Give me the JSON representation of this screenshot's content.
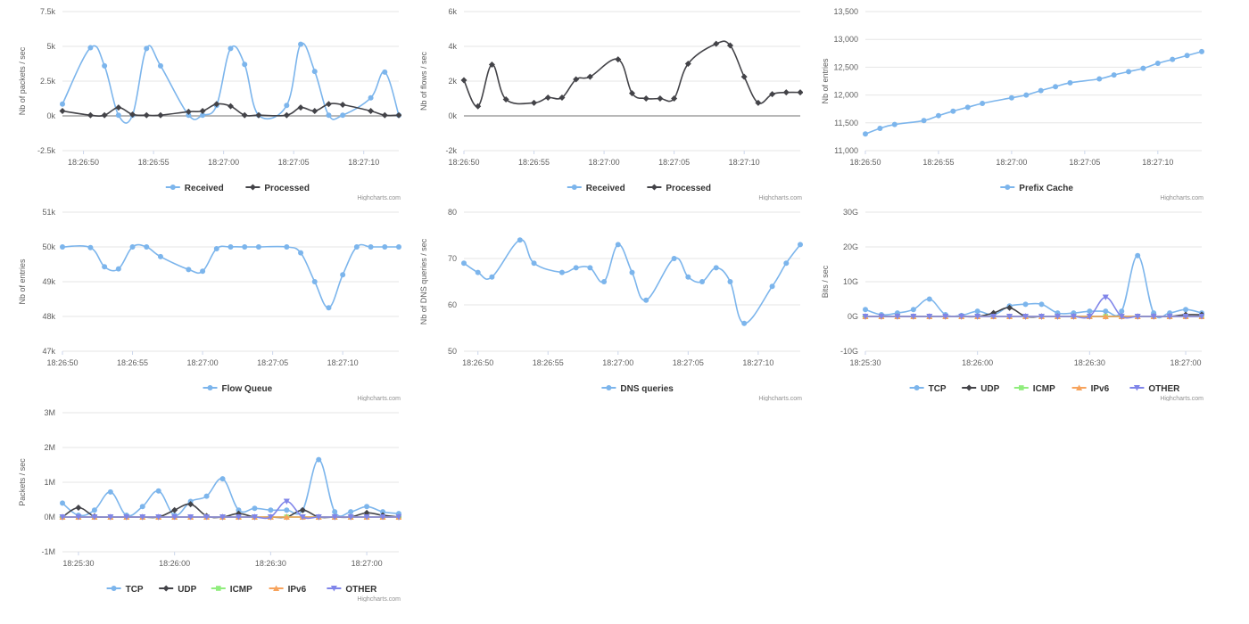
{
  "credits": "Highcharts.com",
  "colors": {
    "series_blue": "#7cb5ec",
    "series_dark": "#434348",
    "series_green": "#90ed7d",
    "series_orange": "#f7a35c",
    "series_purple": "#8085e9",
    "grid": "#e6e6e6",
    "zero_line": "#a0a0a0",
    "axis_text": "#606060"
  },
  "chart_data": [
    {
      "id": "packets",
      "type": "line",
      "title": "",
      "ylabel": "Nb of packets / sec",
      "ylim": [
        -2500,
        7500
      ],
      "yticks": [
        -2500,
        0,
        2500,
        5000,
        7500
      ],
      "ytick_labels": [
        "-2.5k",
        "0k",
        "2.5k",
        "5k",
        "7.5k"
      ],
      "xlim": [
        0,
        24
      ],
      "xticks": [
        1.5,
        6.5,
        11.5,
        16.5,
        21.5
      ],
      "xtick_labels": [
        "18:26:50",
        "18:26:55",
        "18:27:00",
        "18:27:05",
        "18:27:10"
      ],
      "series": [
        {
          "name": "Received",
          "color": "#7cb5ec",
          "marker": "circle",
          "x": [
            0,
            2,
            3,
            4,
            5,
            6,
            7,
            9,
            10,
            11,
            12,
            13,
            14,
            16,
            17,
            18,
            19,
            20,
            22,
            23,
            24
          ],
          "values": [
            850,
            4900,
            3600,
            50,
            50,
            4850,
            3600,
            50,
            50,
            750,
            4850,
            3700,
            50,
            750,
            5150,
            3200,
            50,
            50,
            1300,
            3150,
            50
          ]
        },
        {
          "name": "Processed",
          "color": "#434348",
          "marker": "diamond",
          "x": [
            0,
            2,
            3,
            4,
            5,
            6,
            7,
            9,
            10,
            11,
            12,
            13,
            14,
            16,
            17,
            18,
            19,
            20,
            22,
            23,
            24
          ],
          "values": [
            350,
            50,
            50,
            600,
            100,
            50,
            50,
            300,
            350,
            850,
            700,
            50,
            50,
            50,
            600,
            350,
            850,
            800,
            350,
            50,
            50
          ]
        }
      ]
    },
    {
      "id": "flows",
      "type": "line",
      "title": "",
      "ylabel": "Nb of flows / sec",
      "ylim": [
        -2000,
        6000
      ],
      "yticks": [
        -2000,
        0,
        2000,
        4000,
        6000
      ],
      "ytick_labels": [
        "-2k",
        "0k",
        "2k",
        "4k",
        "6k"
      ],
      "xlim": [
        0,
        24
      ],
      "xticks": [
        0,
        5,
        10,
        15,
        20
      ],
      "xtick_labels": [
        "18:26:50",
        "18:26:55",
        "18:27:00",
        "18:27:05",
        "18:27:10"
      ],
      "series": [
        {
          "name": "Received",
          "color": "#7cb5ec",
          "marker": "circle",
          "x": [],
          "values": []
        },
        {
          "name": "Processed",
          "color": "#434348",
          "marker": "diamond",
          "x": [
            0,
            1,
            2,
            3,
            5,
            6,
            7,
            8,
            9,
            11,
            12,
            13,
            14,
            15,
            16,
            18,
            19,
            20,
            21,
            22,
            23,
            24
          ],
          "values": [
            2050,
            550,
            2950,
            950,
            750,
            1050,
            1050,
            2100,
            2250,
            3250,
            1300,
            1000,
            1000,
            1000,
            3000,
            4150,
            4050,
            2250,
            750,
            1250,
            1350,
            1350
          ]
        }
      ]
    },
    {
      "id": "prefix",
      "type": "line",
      "title": "",
      "ylabel": "Nb of entries",
      "ylim": [
        11000,
        13500
      ],
      "yticks": [
        11000,
        11500,
        12000,
        12500,
        13000,
        13500
      ],
      "ytick_labels": [
        "11,000",
        "11,500",
        "12,000",
        "12,500",
        "13,000",
        "13,500"
      ],
      "xlim": [
        0,
        23
      ],
      "xticks": [
        0,
        5,
        10,
        15,
        20
      ],
      "xtick_labels": [
        "18:26:50",
        "18:26:55",
        "18:27:00",
        "18:27:05",
        "18:27:10"
      ],
      "series": [
        {
          "name": "Prefix Cache",
          "color": "#7cb5ec",
          "marker": "circle",
          "x": [
            0,
            1,
            2,
            4,
            5,
            6,
            7,
            8,
            10,
            11,
            12,
            13,
            14,
            16,
            17,
            18,
            19,
            20,
            21,
            22,
            23
          ],
          "values": [
            11300,
            11400,
            11470,
            11540,
            11630,
            11710,
            11780,
            11850,
            11950,
            12000,
            12080,
            12150,
            12220,
            12290,
            12360,
            12420,
            12480,
            12570,
            12640,
            12710,
            12780
          ]
        }
      ]
    },
    {
      "id": "flowqueue",
      "type": "line",
      "title": "",
      "ylabel": "Nb of entries",
      "ylim": [
        47000,
        51000
      ],
      "yticks": [
        47000,
        48000,
        49000,
        50000,
        51000
      ],
      "ytick_labels": [
        "47k",
        "48k",
        "49k",
        "50k",
        "51k"
      ],
      "xlim": [
        0,
        24
      ],
      "xticks": [
        0,
        5,
        10,
        15,
        20
      ],
      "xtick_labels": [
        "18:26:50",
        "18:26:55",
        "18:27:00",
        "18:27:05",
        "18:27:10"
      ],
      "series": [
        {
          "name": "Flow Queue",
          "color": "#7cb5ec",
          "marker": "circle",
          "x": [
            0,
            2,
            3,
            4,
            5,
            6,
            7,
            9,
            10,
            11,
            12,
            13,
            14,
            16,
            17,
            18,
            19,
            20,
            21,
            22,
            23,
            24
          ],
          "values": [
            50000,
            49980,
            49430,
            49370,
            50000,
            50000,
            49720,
            49350,
            49300,
            49950,
            50000,
            50000,
            50000,
            50000,
            49830,
            49000,
            48250,
            49200,
            50000,
            50000,
            50000,
            50000
          ]
        }
      ]
    },
    {
      "id": "dns",
      "type": "line",
      "title": "",
      "ylabel": "Nb of DNS queries / sec",
      "ylim": [
        50,
        80
      ],
      "yticks": [
        50,
        60,
        70,
        80
      ],
      "ytick_labels": [
        "50",
        "60",
        "70",
        "80"
      ],
      "xlim": [
        0,
        24
      ],
      "xticks": [
        1,
        6,
        11,
        16,
        21
      ],
      "xtick_labels": [
        "18:26:50",
        "18:26:55",
        "18:27:00",
        "18:27:05",
        "18:27:10"
      ],
      "series": [
        {
          "name": "DNS queries",
          "color": "#7cb5ec",
          "marker": "circle",
          "x": [
            0,
            1,
            2,
            4,
            5,
            7,
            8,
            9,
            10,
            11,
            12,
            13,
            15,
            16,
            17,
            18,
            19,
            20,
            22,
            23,
            24
          ],
          "values": [
            69,
            67,
            66,
            74,
            69,
            67,
            68,
            68,
            65,
            73,
            67,
            61,
            70,
            66,
            65,
            68,
            65,
            56,
            64,
            69,
            73
          ]
        }
      ]
    },
    {
      "id": "bits",
      "type": "line",
      "title": "",
      "ylabel": "Bits / sec",
      "ylim": [
        -10,
        30
      ],
      "yticks": [
        -10,
        0,
        10,
        20,
        30
      ],
      "ytick_labels": [
        "-10G",
        "0G",
        "10G",
        "20G",
        "30G"
      ],
      "xlim": [
        0,
        21
      ],
      "xticks": [
        0,
        7,
        14,
        20
      ],
      "xtick_labels": [
        "18:25:30",
        "18:26:00",
        "18:26:30",
        "18:27:00"
      ],
      "series": [
        {
          "name": "TCP",
          "color": "#7cb5ec",
          "marker": "circle",
          "x": [
            0,
            1,
            2,
            3,
            4,
            5,
            6,
            7,
            8,
            9,
            10,
            11,
            12,
            13,
            14,
            15,
            16,
            17,
            18,
            19,
            20,
            21
          ],
          "values": [
            2,
            0.5,
            1,
            2,
            5,
            0.5,
            0.3,
            1.5,
            0.5,
            3,
            3.5,
            3.5,
            1,
            1,
            1.5,
            1.5,
            1.5,
            17.5,
            1,
            1,
            2,
            1
          ]
        },
        {
          "name": "UDP",
          "color": "#434348",
          "marker": "diamond",
          "x": [
            0,
            1,
            2,
            3,
            4,
            5,
            6,
            7,
            8,
            9,
            10,
            11,
            12,
            13,
            14,
            15,
            16,
            17,
            18,
            19,
            20,
            21
          ],
          "values": [
            0,
            0,
            0,
            0,
            0,
            0,
            0,
            0,
            1,
            2.5,
            0,
            0,
            0,
            0,
            0,
            0,
            0,
            0,
            0,
            0,
            0.5,
            0.5
          ]
        },
        {
          "name": "ICMP",
          "color": "#90ed7d",
          "marker": "square",
          "x": [
            0,
            1,
            2,
            3,
            4,
            5,
            6,
            7,
            8,
            9,
            10,
            11,
            12,
            13,
            14,
            15,
            16,
            17,
            18,
            19,
            20,
            21
          ],
          "values": [
            0,
            0,
            0,
            0,
            0,
            0,
            0,
            0,
            0,
            0,
            0,
            0,
            0,
            0,
            0,
            0,
            0,
            0,
            0,
            0,
            0,
            0
          ]
        },
        {
          "name": "IPv6",
          "color": "#f7a35c",
          "marker": "triangle",
          "x": [
            0,
            1,
            2,
            3,
            4,
            5,
            6,
            7,
            8,
            9,
            10,
            11,
            12,
            13,
            14,
            15,
            16,
            17,
            18,
            19,
            20,
            21
          ],
          "values": [
            0,
            0,
            0,
            0,
            0,
            0,
            0,
            0,
            0,
            0,
            0,
            0,
            0,
            0,
            0,
            0,
            0,
            0,
            0,
            0,
            0,
            0
          ]
        },
        {
          "name": "OTHER",
          "color": "#8085e9",
          "marker": "triangle-down",
          "x": [
            0,
            1,
            2,
            3,
            4,
            5,
            6,
            7,
            8,
            9,
            10,
            11,
            12,
            13,
            14,
            15,
            16,
            17,
            18,
            19,
            20,
            21
          ],
          "values": [
            0,
            0,
            0,
            0,
            0,
            0,
            0,
            0,
            0,
            0,
            0,
            0,
            0,
            0,
            0,
            5.5,
            0,
            0,
            0,
            0,
            0,
            0
          ]
        }
      ]
    },
    {
      "id": "packets_proto",
      "type": "line",
      "title": "",
      "ylabel": "Packets / sec",
      "ylim": [
        -1,
        3
      ],
      "yticks": [
        -1,
        0,
        1,
        2,
        3
      ],
      "ytick_labels": [
        "-1M",
        "0M",
        "1M",
        "2M",
        "3M"
      ],
      "xlim": [
        0,
        21
      ],
      "xticks": [
        1,
        7,
        13,
        19
      ],
      "xtick_labels": [
        "18:25:30",
        "18:26:00",
        "18:26:30",
        "18:27:00"
      ],
      "series": [
        {
          "name": "TCP",
          "color": "#7cb5ec",
          "marker": "circle",
          "x": [
            0,
            1,
            2,
            3,
            4,
            5,
            6,
            7,
            8,
            9,
            10,
            11,
            12,
            13,
            14,
            15,
            16,
            17,
            18,
            19,
            20,
            21
          ],
          "values": [
            0.4,
            0.05,
            0.2,
            0.72,
            0.05,
            0.3,
            0.75,
            0.05,
            0.45,
            0.6,
            1.1,
            0.2,
            0.25,
            0.2,
            0.2,
            0.2,
            1.65,
            0.15,
            0.15,
            0.3,
            0.15,
            0.1
          ]
        },
        {
          "name": "UDP",
          "color": "#434348",
          "marker": "diamond",
          "x": [
            0,
            1,
            2,
            3,
            4,
            5,
            6,
            7,
            8,
            9,
            10,
            11,
            12,
            13,
            14,
            15,
            16,
            17,
            18,
            19,
            20,
            21
          ],
          "values": [
            0,
            0.27,
            0.02,
            0,
            0,
            0,
            0,
            0.2,
            0.37,
            0.03,
            0,
            0.1,
            0,
            0,
            0,
            0.2,
            0,
            0,
            0,
            0.12,
            0.05,
            0
          ]
        },
        {
          "name": "ICMP",
          "color": "#90ed7d",
          "marker": "square",
          "x": [
            0,
            1,
            2,
            3,
            4,
            5,
            6,
            7,
            8,
            9,
            10,
            11,
            12,
            13,
            14,
            15,
            16,
            17,
            18,
            19,
            20,
            21
          ],
          "values": [
            0,
            0,
            0,
            0,
            0,
            0,
            0,
            0,
            0,
            0,
            0,
            0,
            0,
            0,
            0,
            0,
            0,
            0,
            0,
            0,
            0,
            0
          ]
        },
        {
          "name": "IPv6",
          "color": "#f7a35c",
          "marker": "triangle",
          "x": [
            0,
            1,
            2,
            3,
            4,
            5,
            6,
            7,
            8,
            9,
            10,
            11,
            12,
            13,
            14,
            15,
            16,
            17,
            18,
            19,
            20,
            21
          ],
          "values": [
            0,
            0,
            0,
            0,
            0,
            0,
            0,
            0,
            0,
            0,
            0,
            0,
            0,
            0,
            0,
            0,
            0,
            0,
            0,
            0,
            0,
            0
          ]
        },
        {
          "name": "OTHER",
          "color": "#8085e9",
          "marker": "triangle-down",
          "x": [
            0,
            1,
            2,
            3,
            4,
            5,
            6,
            7,
            8,
            9,
            10,
            11,
            12,
            13,
            14,
            15,
            16,
            17,
            18,
            19,
            20,
            21
          ],
          "values": [
            0,
            0,
            0,
            0,
            0,
            0,
            0,
            0,
            0,
            0,
            0,
            0,
            0,
            0,
            0.45,
            0,
            0,
            0,
            0,
            0,
            0,
            0
          ]
        }
      ]
    }
  ]
}
